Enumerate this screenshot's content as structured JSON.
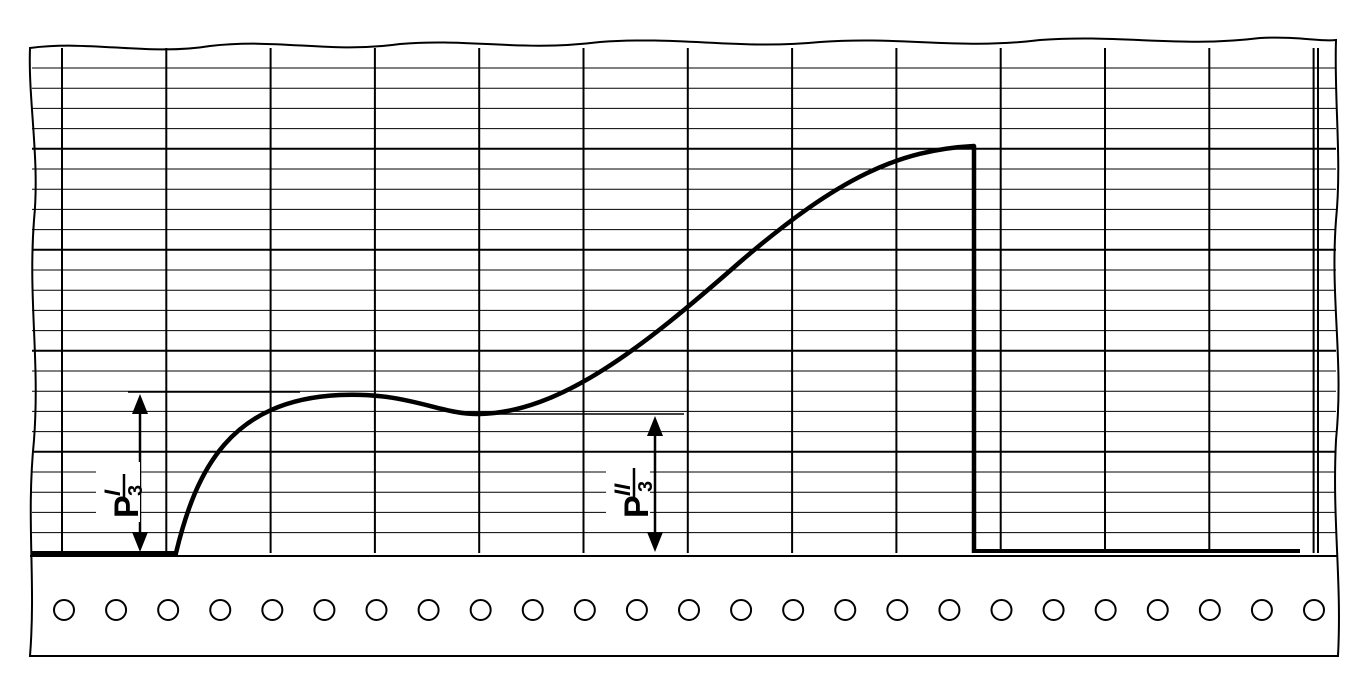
{
  "diagram": {
    "type": "strip-chart-recording",
    "colors": {
      "ink": "#000000",
      "paper": "#ffffff"
    },
    "label_first_peak": {
      "prefix": "P",
      "sup": "I",
      "denominator": "3"
    },
    "label_second_peak": {
      "prefix": "P",
      "sup": "II",
      "denominator": "3"
    },
    "sprocket_hole_count": 25
  }
}
